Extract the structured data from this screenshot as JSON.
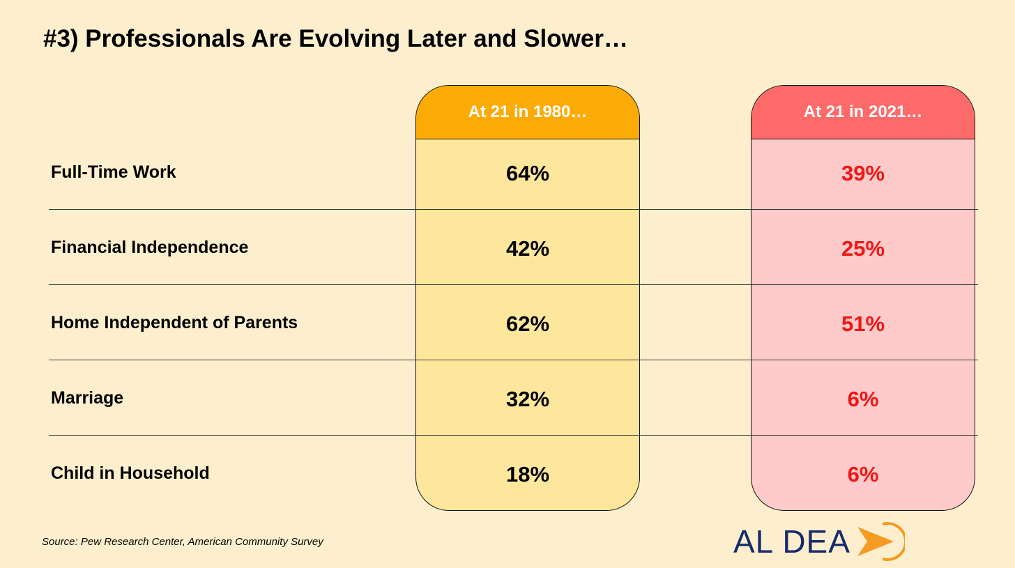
{
  "title": "#3) Professionals Are Evolving Later and Slower…",
  "columns": {
    "c1980": "At 21 in 1980…",
    "c2021": "At 21 in 2021…"
  },
  "rows": [
    {
      "label": "Full-Time Work",
      "v1980": "64%",
      "v2021": "39%"
    },
    {
      "label": "Financial Independence",
      "v1980": "42%",
      "v2021": "25%"
    },
    {
      "label": "Home Independent of Parents",
      "v1980": "62%",
      "v2021": "51%"
    },
    {
      "label": "Marriage",
      "v1980": "32%",
      "v2021": "6%"
    },
    {
      "label": "Child in Household",
      "v1980": "18%",
      "v2021": "6%"
    }
  ],
  "source": "Source: Pew Research Center, American Community Survey",
  "logo": {
    "text": "AL DEA",
    "icon": "orange-arrow-circle-icon"
  },
  "colors": {
    "background": "#fdefcd",
    "header_1980": "#fcab06",
    "column_1980": "#fde79c",
    "header_2021": "#fd6a6a",
    "column_2021": "#fecaca",
    "value_2021": "#f01616",
    "logo_text": "#152b6b",
    "logo_mark": "#f59a23"
  }
}
